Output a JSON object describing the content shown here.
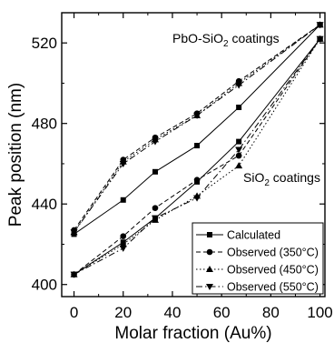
{
  "chart_data": {
    "type": "line",
    "xlabel": "Molar fraction (Au%)",
    "ylabel": "Peak position (nm)",
    "xlim": [
      -5,
      102
    ],
    "ylim": [
      394,
      535
    ],
    "xticks": [
      0,
      20,
      40,
      60,
      80,
      100
    ],
    "yticks": [
      400,
      440,
      480,
      520
    ],
    "grid": false,
    "legend_position": "bottom-right",
    "annotations": [
      {
        "text_main": "PbO-SiO",
        "sub": "2",
        "text_tail": " coatings"
      },
      {
        "text_main": "SiO",
        "sub": "2",
        "text_tail": " coatings"
      }
    ],
    "series": [
      {
        "name": "Calculated",
        "group": "PbO-SiO2",
        "marker": "square",
        "line": "solid",
        "x": [
          0,
          20,
          33,
          50,
          67,
          100
        ],
        "y": [
          425,
          442,
          456,
          469,
          488,
          529
        ]
      },
      {
        "name": "Calculated",
        "group": "SiO2",
        "marker": "square",
        "line": "solid",
        "x": [
          0,
          20,
          33,
          50,
          67,
          100
        ],
        "y": [
          405,
          421,
          433,
          451,
          471,
          522
        ]
      },
      {
        "name": "Observed (350°C)",
        "group": "PbO-SiO2",
        "marker": "circle",
        "line": "dashed",
        "x": [
          0,
          20,
          33,
          50,
          67,
          100
        ],
        "y": [
          427,
          462,
          473,
          485,
          501,
          529
        ]
      },
      {
        "name": "Observed (350°C)",
        "group": "SiO2",
        "marker": "circle",
        "line": "dashed",
        "x": [
          0,
          20,
          33,
          50,
          67,
          100
        ],
        "y": [
          405,
          424,
          438,
          452,
          464,
          522
        ]
      },
      {
        "name": "Observed (450°C)",
        "group": "PbO-SiO2",
        "marker": "triangle-up",
        "line": "dotted",
        "x": [
          0,
          20,
          33,
          50,
          67,
          100
        ],
        "y": [
          426,
          461,
          472,
          484,
          500,
          529
        ]
      },
      {
        "name": "Observed (450°C)",
        "group": "SiO2",
        "marker": "triangle-up",
        "line": "dotted",
        "x": [
          0,
          20,
          33,
          50,
          67,
          100
        ],
        "y": [
          405,
          420,
          432,
          444,
          459,
          522
        ]
      },
      {
        "name": "Observed (550°C)",
        "group": "PbO-SiO2",
        "marker": "triangle-down",
        "line": "dashdot",
        "x": [
          0,
          20,
          33,
          50,
          67,
          100
        ],
        "y": [
          426,
          460,
          471,
          484,
          499,
          529
        ]
      },
      {
        "name": "Observed (550°C)",
        "group": "SiO2",
        "marker": "triangle-down",
        "line": "dashdot",
        "x": [
          0,
          20,
          33,
          50,
          67,
          100
        ],
        "y": [
          405,
          418,
          433,
          443,
          467,
          522
        ]
      }
    ],
    "legend": [
      {
        "label": "Calculated",
        "marker": "square",
        "line": "solid"
      },
      {
        "label": "Observed (350°C)",
        "marker": "circle",
        "line": "dashed"
      },
      {
        "label": "Observed (450°C)",
        "marker": "triangle-up",
        "line": "dotted"
      },
      {
        "label": "Observed (550°C)",
        "marker": "triangle-down",
        "line": "dashdot"
      }
    ]
  }
}
